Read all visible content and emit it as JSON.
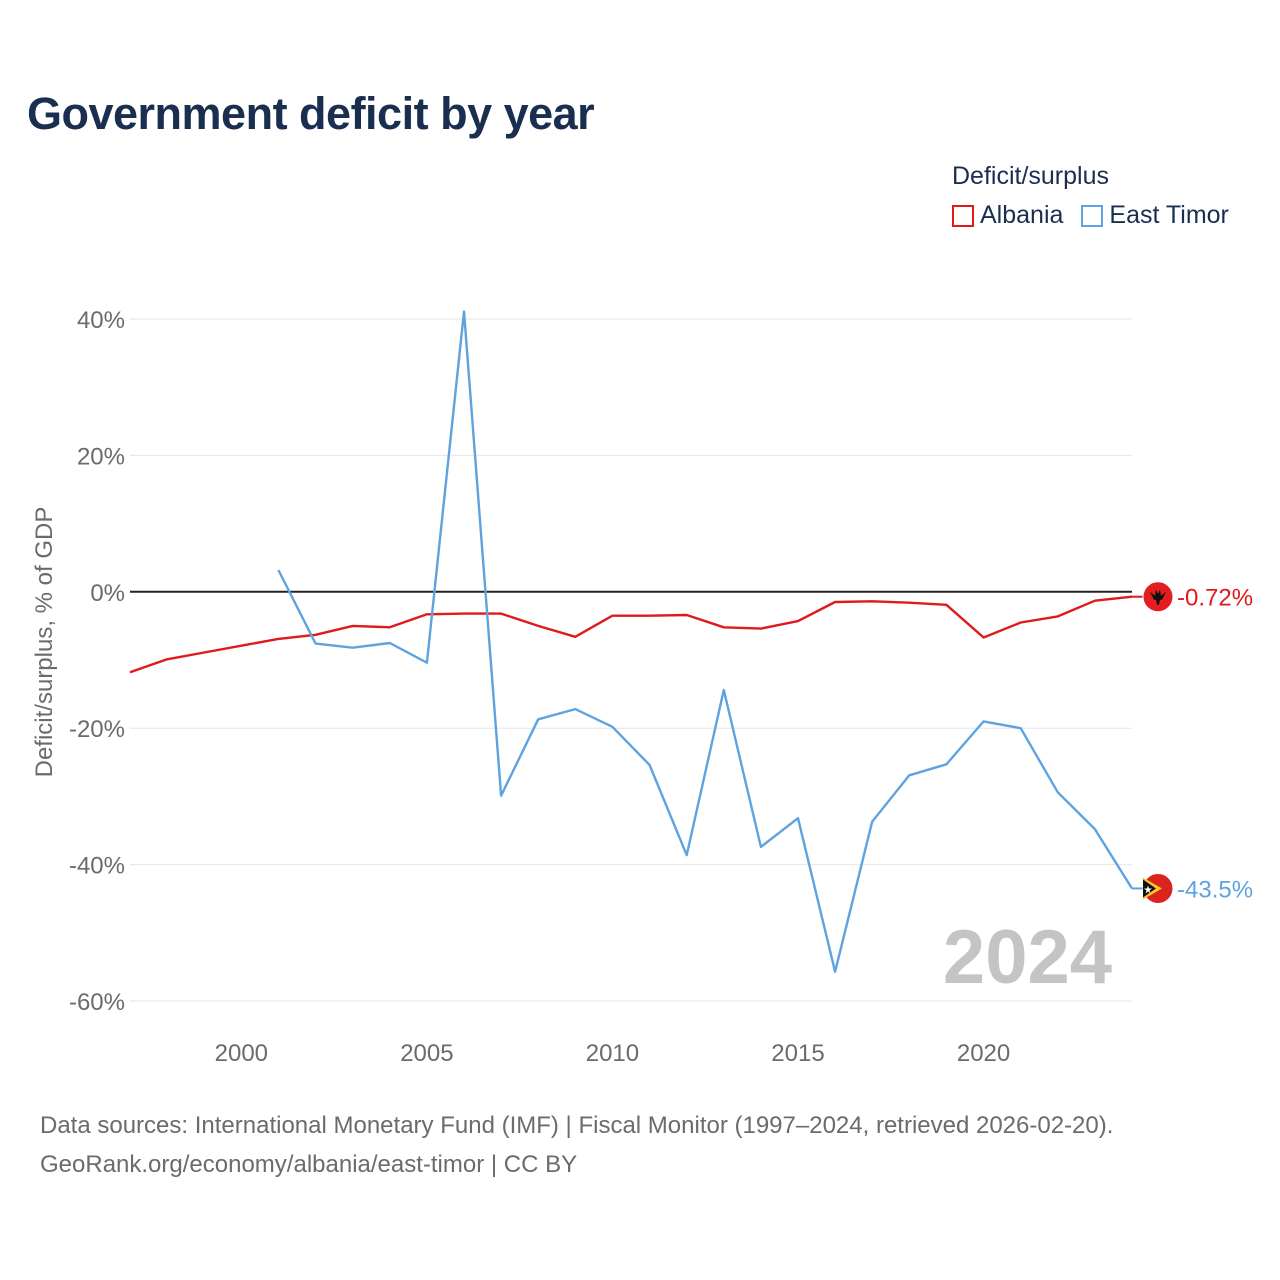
{
  "title": "Government deficit by year",
  "legend": {
    "title": "Deficit/surplus",
    "items": [
      {
        "label": "Albania",
        "color": "#e0191c"
      },
      {
        "label": "East Timor",
        "color": "#5ea3e0"
      }
    ]
  },
  "chart_data": {
    "type": "line",
    "title": "Government deficit by year",
    "xlabel": "",
    "ylabel": "Deficit/surplus, % of GDP",
    "xlim": [
      1997,
      2024
    ],
    "ylim": [
      -60,
      40
    ],
    "x_ticks": [
      2000,
      2005,
      2010,
      2015,
      2020
    ],
    "y_ticks": [
      40,
      20,
      0,
      -20,
      -40,
      -60
    ],
    "y_tick_labels": [
      "40%",
      "20%",
      "0%",
      "-20%",
      "-40%",
      "-60%"
    ],
    "year_watermark": "2024",
    "series": [
      {
        "name": "Albania",
        "color": "#e0191c",
        "flag_icon": "albania-flag-icon",
        "end_label": "-0.72%",
        "x": [
          1997,
          1998,
          1999,
          2000,
          2001,
          2002,
          2003,
          2004,
          2005,
          2006,
          2007,
          2008,
          2009,
          2010,
          2011,
          2012,
          2013,
          2014,
          2015,
          2016,
          2017,
          2018,
          2019,
          2020,
          2021,
          2022,
          2023,
          2024
        ],
        "values": [
          -11.8,
          -9.9,
          -8.9,
          -7.9,
          -6.9,
          -6.3,
          -5.0,
          -5.2,
          -3.3,
          -3.2,
          -3.2,
          -5.0,
          -6.6,
          -3.5,
          -3.5,
          -3.4,
          -5.2,
          -5.4,
          -4.3,
          -1.5,
          -1.4,
          -1.6,
          -1.9,
          -6.7,
          -4.5,
          -3.6,
          -1.3,
          -0.72
        ]
      },
      {
        "name": "East Timor",
        "color": "#5ea3e0",
        "flag_icon": "east-timor-flag-icon",
        "end_label": "-43.5%",
        "x": [
          2001,
          2002,
          2003,
          2004,
          2005,
          2006,
          2007,
          2008,
          2009,
          2010,
          2011,
          2012,
          2013,
          2014,
          2015,
          2016,
          2017,
          2018,
          2019,
          2020,
          2021,
          2022,
          2023,
          2024
        ],
        "values": [
          3.2,
          -7.6,
          -8.2,
          -7.5,
          -10.4,
          41.1,
          -29.9,
          -18.7,
          -17.2,
          -19.8,
          -25.4,
          -38.6,
          -14.4,
          -37.4,
          -33.2,
          -55.7,
          -33.7,
          -26.9,
          -25.3,
          -19.0,
          -20.0,
          -29.4,
          -34.8,
          -43.5
        ]
      }
    ]
  },
  "footer": {
    "line1": "Data sources: International Monetary Fund (IMF) | Fiscal Monitor (1997–2024, retrieved 2026-02-20).",
    "line2": "GeoRank.org/economy/albania/east-timor | CC BY"
  }
}
